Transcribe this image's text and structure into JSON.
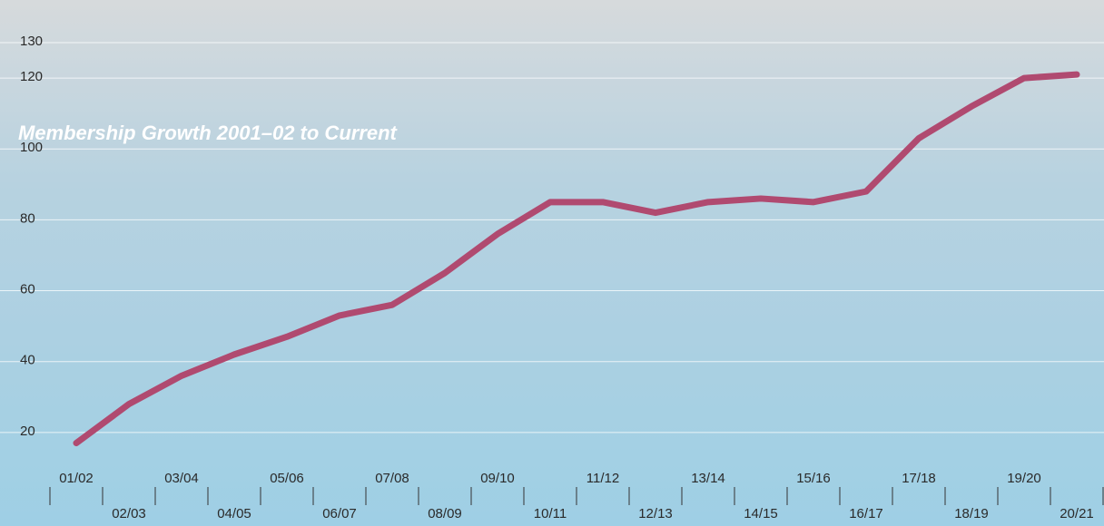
{
  "chart_data": {
    "type": "line",
    "title": "Membership Growth 2001–02 to Current",
    "categories": [
      "01/02",
      "02/03",
      "03/04",
      "04/05",
      "05/06",
      "06/07",
      "07/08",
      "08/09",
      "09/10",
      "10/11",
      "11/12",
      "12/13",
      "13/14",
      "14/15",
      "15/16",
      "16/17",
      "17/18",
      "18/19",
      "19/20",
      "20/21"
    ],
    "values": [
      17,
      28,
      36,
      42,
      47,
      53,
      56,
      65,
      76,
      85,
      85,
      82,
      85,
      86,
      85,
      88,
      103,
      112,
      120,
      121
    ],
    "color": "#b04a70",
    "ylim": [
      0,
      130
    ],
    "yticks": [
      20,
      40,
      60,
      80,
      100,
      120,
      130
    ],
    "grid": true
  }
}
